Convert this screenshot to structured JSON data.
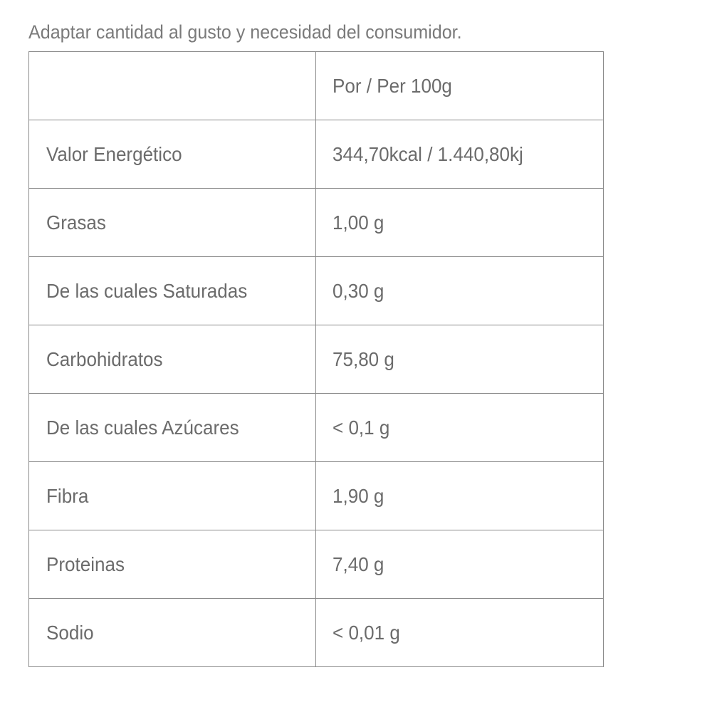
{
  "caption": "Adaptar cantidad al gusto y necesidad del consumidor.",
  "table": {
    "header": [
      "",
      "Por / Per 100g"
    ],
    "rows": [
      {
        "label": "Valor Energético",
        "value": "344,70kcal / 1.440,80kj"
      },
      {
        "label": "Grasas",
        "value": "1,00 g"
      },
      {
        "label": "De las cuales Saturadas",
        "value": "0,30 g"
      },
      {
        "label": "Carbohidratos",
        "value": "75,80 g"
      },
      {
        "label": "De las cuales Azúcares",
        "value": "< 0,1 g"
      },
      {
        "label": "Fibra",
        "value": "1,90 g"
      },
      {
        "label": "Proteinas",
        "value": "7,40 g"
      },
      {
        "label": "Sodio",
        "value": "< 0,01 g"
      }
    ]
  }
}
